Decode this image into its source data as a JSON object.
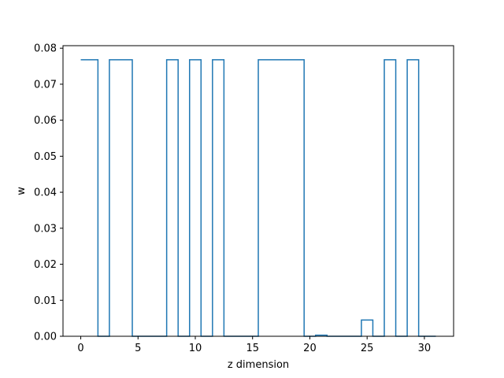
{
  "chart_data": {
    "type": "line",
    "step": "mid",
    "title": "",
    "xlabel": "z dimension",
    "ylabel": "w",
    "xlim": [
      -1.55,
      32.55
    ],
    "ylim": [
      0,
      0.0807
    ],
    "xticks": [
      0,
      5,
      10,
      15,
      20,
      25,
      30
    ],
    "yticks": [
      0.0,
      0.01,
      0.02,
      0.03,
      0.04,
      0.05,
      0.06,
      0.07,
      0.08
    ],
    "ytick_labels": [
      "0.00",
      "0.01",
      "0.02",
      "0.03",
      "0.04",
      "0.05",
      "0.06",
      "0.07",
      "0.08"
    ],
    "grid": false,
    "series": [
      {
        "color": "#1f77b4",
        "x": [
          0,
          1,
          2,
          3,
          4,
          5,
          6,
          7,
          8,
          9,
          10,
          11,
          12,
          13,
          14,
          15,
          16,
          17,
          18,
          19,
          20,
          21,
          22,
          23,
          24,
          25,
          26,
          27,
          28,
          29,
          30,
          31
        ],
        "y": [
          0.0768,
          0.0768,
          0,
          0.0768,
          0.0768,
          0,
          0,
          0,
          0.0768,
          0,
          0.0768,
          0,
          0.0768,
          0,
          0,
          0,
          0.0768,
          0.0768,
          0.0768,
          0.0768,
          0,
          0.0003,
          0,
          0,
          0,
          0.0045,
          0,
          0.0768,
          0,
          0.0768,
          0,
          0
        ]
      }
    ]
  }
}
